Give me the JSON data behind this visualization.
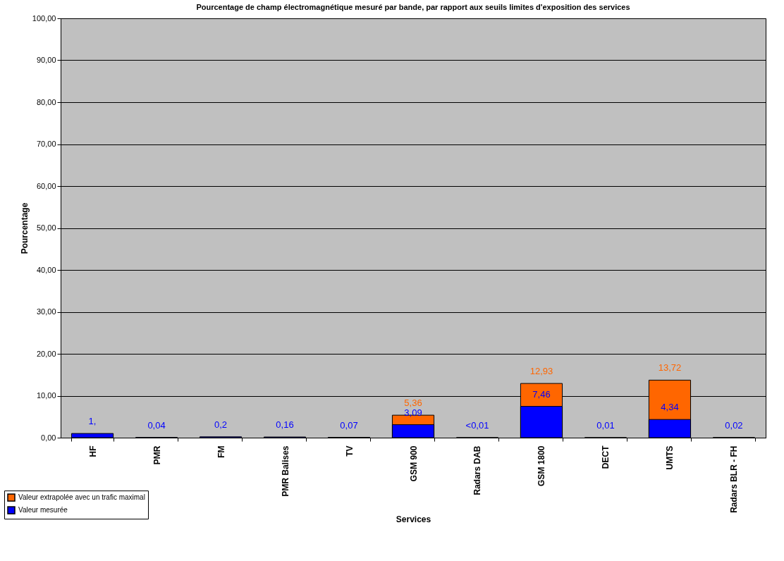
{
  "chart_data": {
    "type": "bar",
    "title": "Pourcentage de champ électromagnétique mesuré par bande, par rapport aux seuils limites d'exposition des services",
    "xlabel": "Services",
    "ylabel": "Pourcentage",
    "categories": [
      "HF",
      "PMR",
      "FM",
      "PMR Balises",
      "TV",
      "GSM 900",
      "Radars DAB",
      "GSM 1800",
      "DECT",
      "UMTS",
      "Radars BLR - FH"
    ],
    "series": [
      {
        "name": "Valeur extrapolée avec un trafic maximal",
        "color": "#ff6600",
        "values": [
          null,
          null,
          null,
          null,
          null,
          5.36,
          null,
          12.93,
          null,
          13.72,
          null
        ],
        "value_labels": [
          null,
          null,
          null,
          null,
          null,
          "5,36",
          null,
          "12,93",
          null,
          "13,72",
          null
        ]
      },
      {
        "name": "Valeur mesurée",
        "color": "#0000ff",
        "values": [
          1,
          0.04,
          0.2,
          0.16,
          0.07,
          3.09,
          0.01,
          7.46,
          0.01,
          4.34,
          0.02
        ],
        "value_labels": [
          "1,",
          "0,04",
          "0,2",
          "0,16",
          "0,07",
          "3,09",
          "<0,01",
          "7,46",
          "0,01",
          "4,34",
          "0,02"
        ]
      }
    ],
    "ylim": [
      0,
      100
    ],
    "yticks": [
      {
        "value": 0,
        "label": "0,00"
      },
      {
        "value": 10,
        "label": "10,00"
      },
      {
        "value": 20,
        "label": "20,00"
      },
      {
        "value": 30,
        "label": "30,00"
      },
      {
        "value": 40,
        "label": "40,00"
      },
      {
        "value": 50,
        "label": "50,00"
      },
      {
        "value": 60,
        "label": "60,00"
      },
      {
        "value": 70,
        "label": "70,00"
      },
      {
        "value": 80,
        "label": "80,00"
      },
      {
        "value": 90,
        "label": "90,00"
      },
      {
        "value": 100,
        "label": "100,00"
      }
    ],
    "grid": "y",
    "legend": "bottom left"
  }
}
